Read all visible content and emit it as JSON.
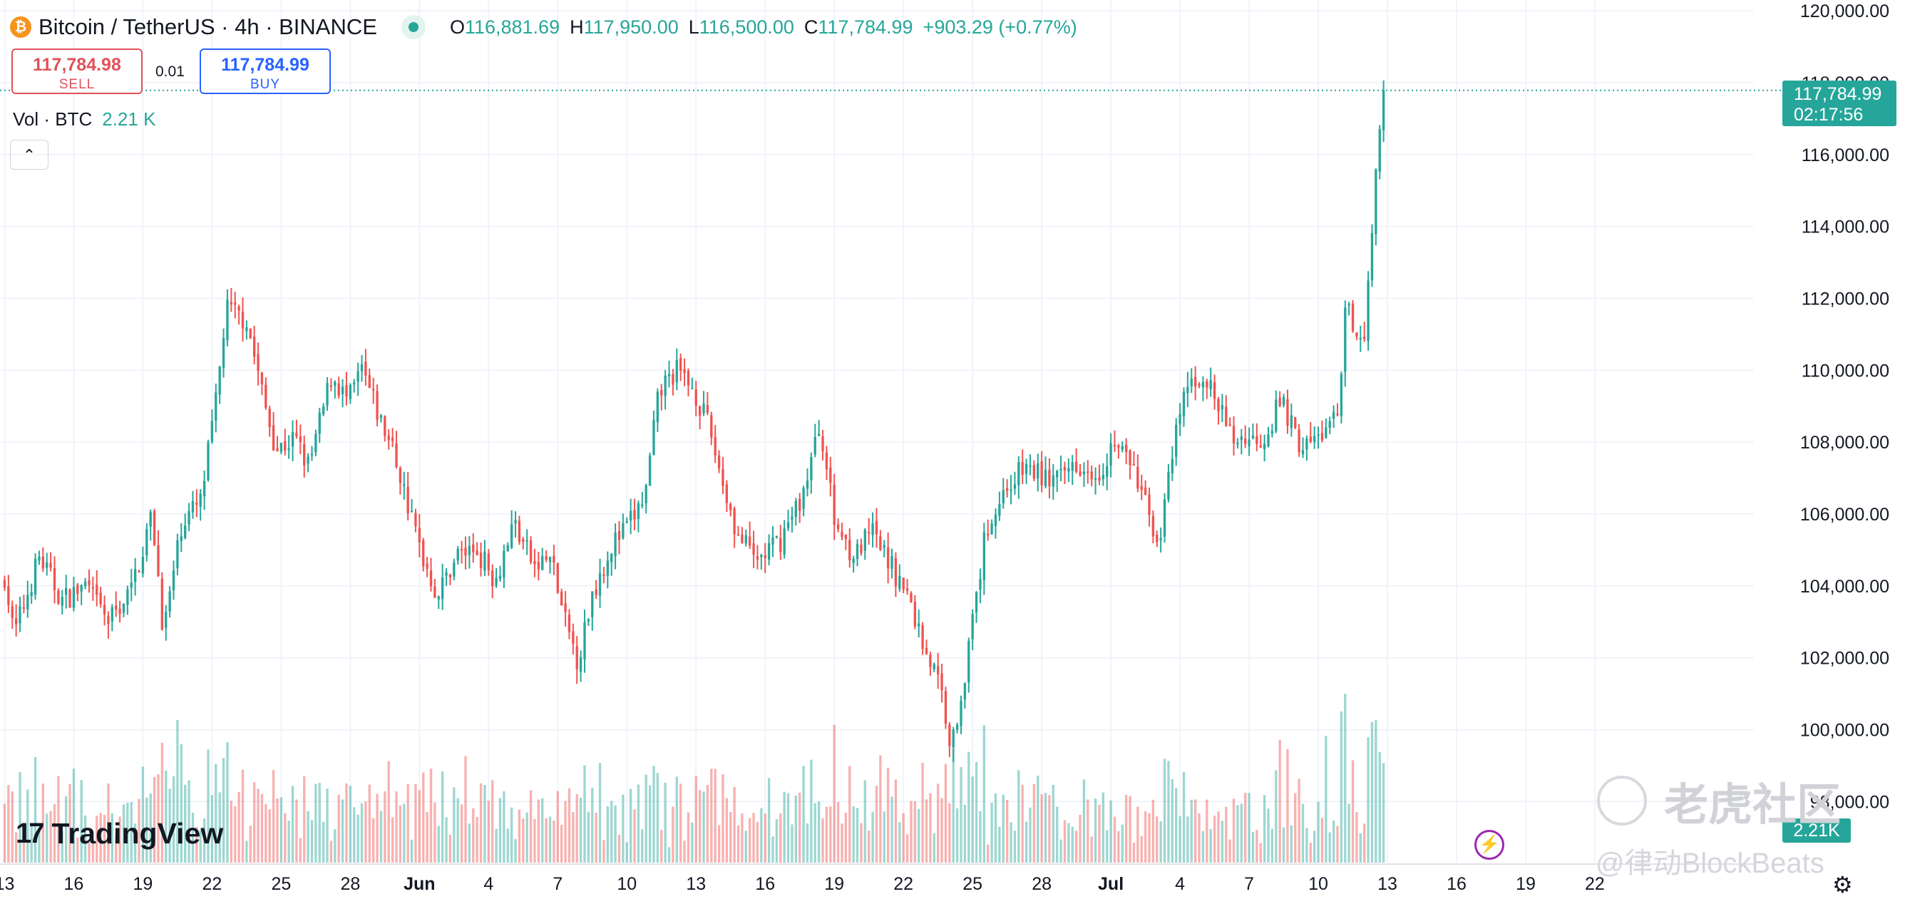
{
  "header": {
    "symbol_title": "Bitcoin / TetherUS · 4h · BINANCE",
    "coin_icon": "bitcoin-icon",
    "ohlc": {
      "o_label": "O",
      "o": "116,881.69",
      "h_label": "H",
      "h": "117,950.00",
      "l_label": "L",
      "l": "116,500.00",
      "c_label": "C",
      "c": "117,784.99",
      "change": "+903.29 (+0.77%)"
    }
  },
  "trade": {
    "sell_price": "117,784.98",
    "sell_label": "SELL",
    "spread": "0.01",
    "buy_price": "117,784.99",
    "buy_label": "BUY"
  },
  "volume_legend": {
    "label": "Vol · BTC",
    "value": "2.21 K"
  },
  "price_label": {
    "price": "117,784.99",
    "countdown": "02:17:56"
  },
  "volume_label": "2.21K",
  "branding": {
    "logo_text": "TradingView"
  },
  "watermarks": {
    "line1": "老虎社区",
    "line2": "@律动BlockBeats"
  },
  "colors": {
    "up": "#26a69a",
    "down": "#ef5350",
    "grid": "#f0f3fa",
    "axis_text": "#131722"
  },
  "chart_data": {
    "type": "candlestick",
    "symbol": "BTCUSDT",
    "interval": "4h",
    "y_ticks": [
      98000,
      100000,
      102000,
      104000,
      106000,
      108000,
      110000,
      112000,
      114000,
      116000,
      118000,
      120000
    ],
    "y_tick_labels": [
      "98,000.00",
      "100,000.00",
      "102,000.00",
      "104,000.00",
      "106,000.00",
      "108,000.00",
      "110,000.00",
      "112,000.00",
      "114,000.00",
      "116,000.00",
      "118,000.00",
      "120,000.00"
    ],
    "ylim": [
      96300,
      120300
    ],
    "x_ticks": [
      "13",
      "16",
      "19",
      "22",
      "25",
      "28",
      "Jun",
      "4",
      "7",
      "10",
      "13",
      "16",
      "19",
      "22",
      "25",
      "28",
      "Jul",
      "4",
      "7",
      "10",
      "13",
      "16",
      "19",
      "22"
    ],
    "xlim_day_index": [
      -0.2,
      75.9
    ],
    "last_price": 117784.99,
    "anchors_day_close": [
      [
        0.0,
        104300
      ],
      [
        0.4,
        102600
      ],
      [
        1.5,
        104800
      ],
      [
        2.5,
        103600
      ],
      [
        3.5,
        104000
      ],
      [
        4.5,
        103000
      ],
      [
        5.5,
        103900
      ],
      [
        6.4,
        106000
      ],
      [
        6.9,
        102700
      ],
      [
        7.7,
        105800
      ],
      [
        8.5,
        106300
      ],
      [
        9.2,
        109200
      ],
      [
        9.6,
        111700
      ],
      [
        10.5,
        111400
      ],
      [
        11.3,
        109000
      ],
      [
        11.8,
        107800
      ],
      [
        12.6,
        108100
      ],
      [
        13.2,
        107300
      ],
      [
        14.2,
        109900
      ],
      [
        14.9,
        109100
      ],
      [
        15.5,
        110000
      ],
      [
        16.3,
        108600
      ],
      [
        16.9,
        107700
      ],
      [
        17.6,
        106000
      ],
      [
        18.1,
        104900
      ],
      [
        18.8,
        103700
      ],
      [
        19.6,
        104900
      ],
      [
        20.5,
        105000
      ],
      [
        21.3,
        104200
      ],
      [
        22.1,
        105800
      ],
      [
        23.0,
        104500
      ],
      [
        23.7,
        104800
      ],
      [
        24.3,
        103000
      ],
      [
        24.9,
        101900
      ],
      [
        25.5,
        103800
      ],
      [
        26.3,
        105100
      ],
      [
        27.1,
        105700
      ],
      [
        27.8,
        106500
      ],
      [
        28.4,
        109400
      ],
      [
        29.1,
        110000
      ],
      [
        29.9,
        109500
      ],
      [
        30.6,
        108300
      ],
      [
        31.2,
        106800
      ],
      [
        31.8,
        105400
      ],
      [
        32.6,
        104700
      ],
      [
        33.6,
        105200
      ],
      [
        34.6,
        106500
      ],
      [
        35.4,
        108500
      ],
      [
        36.0,
        105800
      ],
      [
        36.9,
        104800
      ],
      [
        37.6,
        105500
      ],
      [
        38.6,
        104400
      ],
      [
        39.2,
        103700
      ],
      [
        39.8,
        102500
      ],
      [
        40.6,
        101200
      ],
      [
        41.1,
        99500
      ],
      [
        41.9,
        102500
      ],
      [
        42.6,
        105600
      ],
      [
        43.5,
        106800
      ],
      [
        44.3,
        107300
      ],
      [
        45.2,
        107000
      ],
      [
        45.8,
        106900
      ],
      [
        46.4,
        107500
      ],
      [
        47.5,
        107200
      ],
      [
        48.1,
        108000
      ],
      [
        48.8,
        107500
      ],
      [
        49.6,
        106100
      ],
      [
        50.1,
        105200
      ],
      [
        50.7,
        107700
      ],
      [
        51.2,
        109400
      ],
      [
        52.0,
        109900
      ],
      [
        52.7,
        108900
      ],
      [
        53.3,
        108100
      ],
      [
        54.6,
        108100
      ],
      [
        55.4,
        109200
      ],
      [
        56.1,
        108000
      ],
      [
        56.6,
        107900
      ],
      [
        57.4,
        108400
      ],
      [
        57.9,
        108700
      ],
      [
        58.2,
        111800
      ],
      [
        58.7,
        111100
      ],
      [
        59.0,
        111200
      ],
      [
        59.3,
        113300
      ],
      [
        59.6,
        116500
      ],
      [
        59.75,
        117600
      ],
      [
        59.9,
        117785
      ]
    ]
  }
}
